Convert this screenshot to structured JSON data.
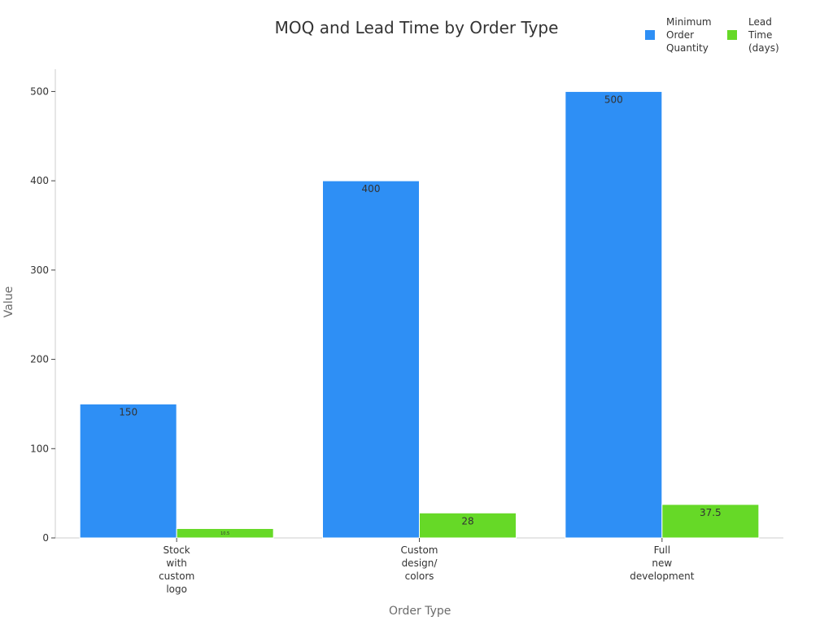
{
  "chart_data": {
    "type": "bar",
    "title": "MOQ and Lead Time by Order Type",
    "xlabel": "Order Type",
    "ylabel": "Value",
    "categories": [
      "Stock\nwith\ncustom\nlogo",
      "Custom\ndesign/\ncolors",
      "Full\nnew\ndevelopment"
    ],
    "series": [
      {
        "name": "Minimum\nOrder\nQuantity",
        "color": "#2e8ff5",
        "values": [
          150,
          400,
          500
        ],
        "labels": [
          "150",
          "400",
          "500"
        ]
      },
      {
        "name": "Lead\nTime\n(days)",
        "color": "#66d927",
        "values": [
          10.5,
          28,
          37.5
        ],
        "labels": [
          "10.5",
          "28",
          "37.5"
        ]
      }
    ],
    "ylim": [
      0,
      525
    ],
    "yticks": [
      0,
      100,
      200,
      300,
      400,
      500
    ],
    "grid": false,
    "legend": "top-right"
  }
}
